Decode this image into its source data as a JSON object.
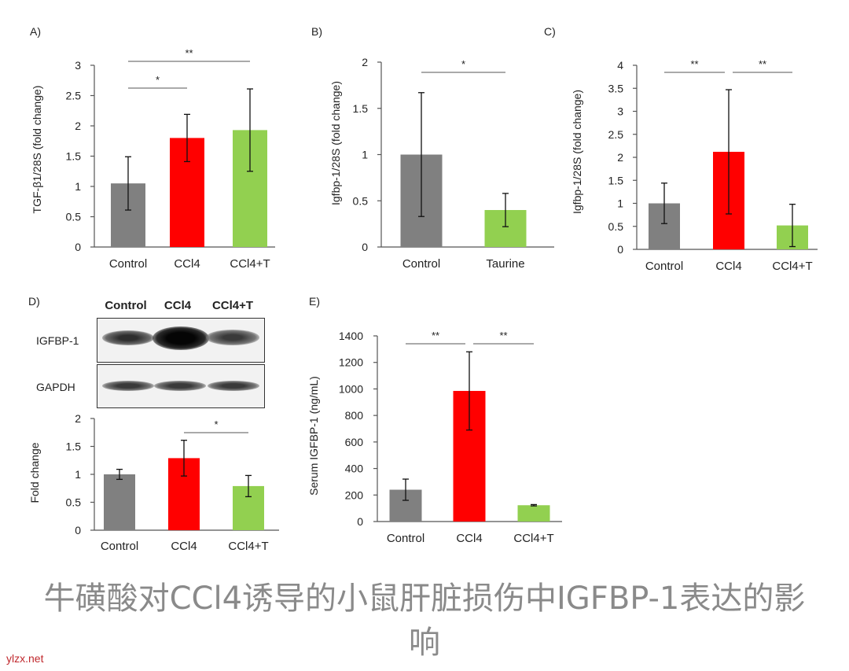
{
  "colors": {
    "control": "#808080",
    "ccl4": "#ff0000",
    "ccl4t": "#92d050",
    "taurine": "#92d050"
  },
  "chart_data": [
    {
      "panel": "A)",
      "type": "bar",
      "ylabel": "TGF-β1/28S (fold change)",
      "ylim": [
        0,
        3
      ],
      "yticks": [
        "0",
        "0.5",
        "1",
        "1.5",
        "2",
        "2.5",
        "3"
      ],
      "categories": [
        "Control",
        "CCl4",
        "CCl4+T"
      ],
      "values": [
        1.05,
        1.8,
        1.93
      ],
      "errors": [
        0.44,
        0.39,
        0.68
      ],
      "significance": [
        {
          "from": 0,
          "to": 1,
          "label": "*"
        },
        {
          "from": 0,
          "to": 2,
          "label": "**"
        }
      ]
    },
    {
      "panel": "B)",
      "type": "bar",
      "ylabel": "Igfbp-1/28S (fold change)",
      "ylim": [
        0,
        2
      ],
      "yticks": [
        "0",
        "0.5",
        "1",
        "1.5",
        "2"
      ],
      "categories": [
        "Control",
        "Taurine"
      ],
      "values": [
        1.0,
        0.4
      ],
      "errors": [
        0.67,
        0.18
      ],
      "significance": [
        {
          "from": 0,
          "to": 1,
          "label": "*"
        }
      ]
    },
    {
      "panel": "C)",
      "type": "bar",
      "ylabel": "Igfbp-1/28S (fold change)",
      "ylim": [
        0,
        4
      ],
      "yticks": [
        "0",
        "0.5",
        "1",
        "1.5",
        "2",
        "2.5",
        "3",
        "3.5",
        "4"
      ],
      "categories": [
        "Control",
        "CCl4",
        "CCl4+T"
      ],
      "values": [
        1.0,
        2.12,
        0.52
      ],
      "errors": [
        0.44,
        1.35,
        0.46
      ],
      "significance": [
        {
          "from": 0,
          "to": 1,
          "label": "**"
        },
        {
          "from": 1,
          "to": 2,
          "label": "**"
        }
      ]
    },
    {
      "panel": "D)",
      "type": "bar",
      "ylabel": "Fold change",
      "ylim": [
        0,
        2
      ],
      "yticks": [
        "0",
        "0.5",
        "1",
        "1.5",
        "2"
      ],
      "categories": [
        "Control",
        "CCl4",
        "CCl4+T"
      ],
      "values": [
        1.0,
        1.29,
        0.79
      ],
      "errors": [
        0.09,
        0.32,
        0.19
      ],
      "significance": [
        {
          "from": 1,
          "to": 2,
          "label": "*"
        }
      ]
    },
    {
      "panel": "E)",
      "type": "bar",
      "ylabel": "Serum IGFBP-1 (ng/mL)",
      "ylim": [
        0,
        1400
      ],
      "yticks": [
        "0",
        "200",
        "400",
        "600",
        "800",
        "1000",
        "1200",
        "1400"
      ],
      "categories": [
        "Control",
        "CCl4",
        "CCl4+T"
      ],
      "values": [
        240,
        985,
        123
      ],
      "errors": [
        80,
        295,
        5
      ],
      "significance": [
        {
          "from": 0,
          "to": 1,
          "label": "**"
        },
        {
          "from": 1,
          "to": 2,
          "label": "**"
        }
      ]
    }
  ],
  "blot": {
    "lanes": [
      "Control",
      "CCl4",
      "CCl4+T"
    ],
    "rows": [
      {
        "label": "IGFBP-1"
      },
      {
        "label": "GAPDH"
      }
    ]
  },
  "caption_line1": "牛磺酸对CCl4诱导的小鼠肝脏损伤中IGFBP-1表达的影",
  "caption_line2": "响",
  "watermark": "ylzx.net"
}
